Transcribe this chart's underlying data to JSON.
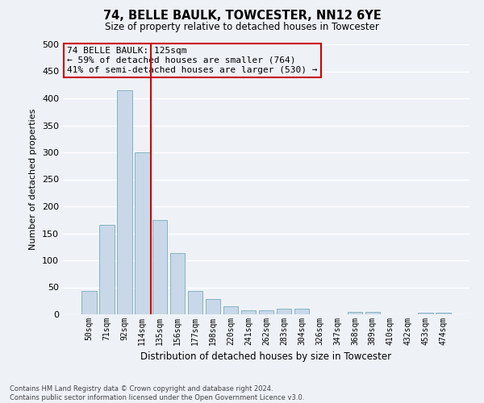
{
  "title": "74, BELLE BAULK, TOWCESTER, NN12 6YE",
  "subtitle": "Size of property relative to detached houses in Towcester",
  "xlabel": "Distribution of detached houses by size in Towcester",
  "ylabel": "Number of detached properties",
  "categories": [
    "50sqm",
    "71sqm",
    "92sqm",
    "114sqm",
    "135sqm",
    "156sqm",
    "177sqm",
    "198sqm",
    "220sqm",
    "241sqm",
    "262sqm",
    "283sqm",
    "304sqm",
    "326sqm",
    "347sqm",
    "368sqm",
    "389sqm",
    "410sqm",
    "432sqm",
    "453sqm",
    "474sqm"
  ],
  "values": [
    44,
    165,
    415,
    300,
    175,
    113,
    44,
    28,
    15,
    8,
    8,
    10,
    10,
    0,
    0,
    4,
    4,
    0,
    0,
    3,
    3
  ],
  "bar_color": "#c8d8e8",
  "bar_edge_color": "#7aaabb",
  "vline_x": 3.5,
  "vline_color": "#cc0000",
  "ylim": [
    0,
    500
  ],
  "yticks": [
    0,
    50,
    100,
    150,
    200,
    250,
    300,
    350,
    400,
    450,
    500
  ],
  "annotation_title": "74 BELLE BAULK: 125sqm",
  "annotation_line1": "← 59% of detached houses are smaller (764)",
  "annotation_line2": "41% of semi-detached houses are larger (530) →",
  "box_color": "#cc0000",
  "footer_line1": "Contains HM Land Registry data © Crown copyright and database right 2024.",
  "footer_line2": "Contains public sector information licensed under the Open Government Licence v3.0.",
  "bg_color": "#eef2f7",
  "grid_color": "#ffffff"
}
